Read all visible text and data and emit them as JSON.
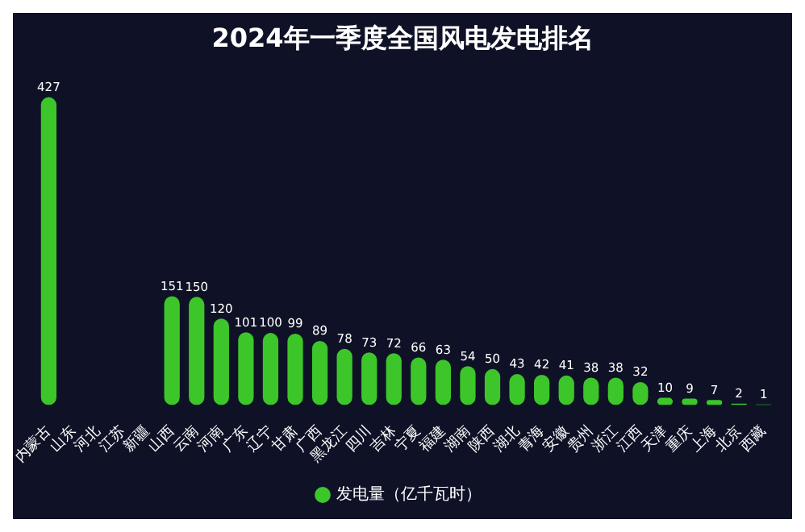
{
  "chart_data": {
    "type": "bar",
    "title": "2024年一季度全国风电发电排名",
    "categories": [
      "内蒙古",
      "山东",
      "河北",
      "江苏",
      "新疆",
      "山西",
      "云南",
      "河南",
      "广东",
      "辽宁",
      "甘肃",
      "广西",
      "黑龙江",
      "四川",
      "吉林",
      "宁夏",
      "福建",
      "湖南",
      "陕西",
      "湖北",
      "青海",
      "安徽",
      "贵州",
      "浙江",
      "江西",
      "天津",
      "重庆",
      "上海",
      "北京",
      "西藏"
    ],
    "series": [
      {
        "name": "发电量（亿千瓦时）",
        "color": "#3cc62a",
        "values": [
          427,
          null,
          null,
          null,
          null,
          151,
          150,
          120,
          101,
          100,
          99,
          89,
          78,
          73,
          72,
          66,
          63,
          54,
          50,
          43,
          42,
          41,
          38,
          38,
          32,
          10,
          9,
          7,
          2,
          1
        ]
      }
    ],
    "data_labels": true,
    "legend": "bottom"
  }
}
